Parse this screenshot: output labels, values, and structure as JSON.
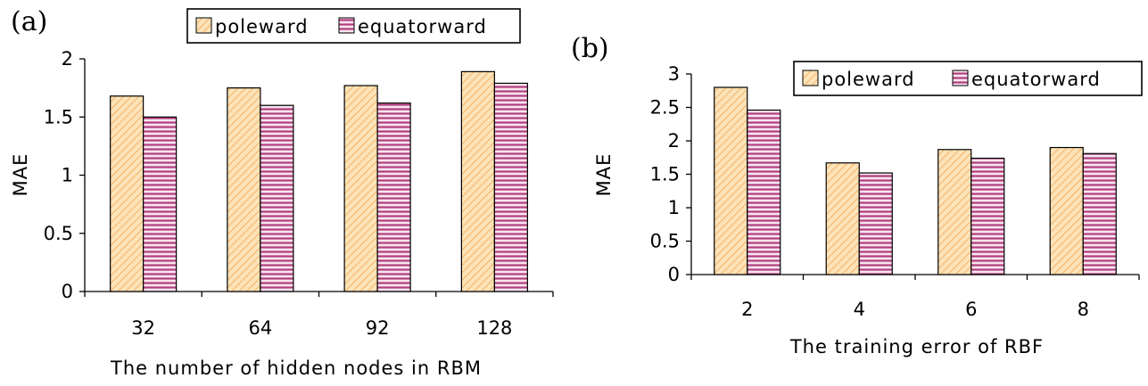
{
  "chart_data": [
    {
      "type": "bar",
      "panel_label": "(a)",
      "categories": [
        "32",
        "64",
        "92",
        "128"
      ],
      "series": [
        {
          "name": "poleward",
          "values": [
            1.68,
            1.75,
            1.77,
            1.89
          ]
        },
        {
          "name": "equatorward",
          "values": [
            1.5,
            1.6,
            1.62,
            1.79
          ]
        }
      ],
      "xlabel": "The number of hidden nodes in RBM",
      "ylabel": "MAE",
      "ylim": [
        0,
        2
      ],
      "yticks": [
        "0",
        "0.5",
        "1",
        "1.5",
        "2"
      ],
      "legend_position": "top-center",
      "grid": false
    },
    {
      "type": "bar",
      "panel_label": "(b)",
      "categories": [
        "2",
        "4",
        "6",
        "8"
      ],
      "series": [
        {
          "name": "poleward",
          "values": [
            2.8,
            1.67,
            1.87,
            1.9
          ]
        },
        {
          "name": "equatorward",
          "values": [
            2.46,
            1.52,
            1.74,
            1.81
          ]
        }
      ],
      "xlabel": "The training error of RBF",
      "ylabel": "MAE",
      "ylim": [
        0,
        3
      ],
      "yticks": [
        "0",
        "0.5",
        "1",
        "1.5",
        "2",
        "2.5",
        "3"
      ],
      "legend_position": "top-right",
      "grid": false
    }
  ],
  "colors": {
    "poleward_fill": "#fde3b8",
    "poleward_hatch": "#f2b66f",
    "equatorward_fill": "#f7e4ef",
    "equatorward_hatch": "#b13d7d",
    "edge": "#000000"
  }
}
